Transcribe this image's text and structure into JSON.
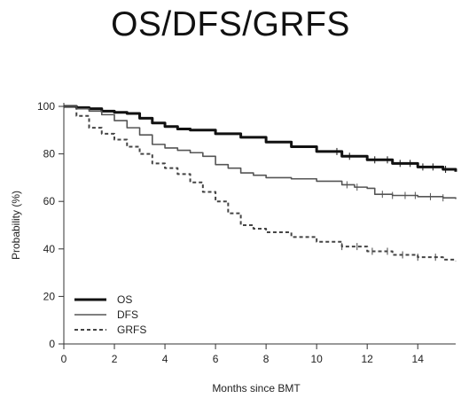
{
  "title": "OS/DFS/GRFS",
  "chart_data": {
    "type": "line",
    "title": "OS/DFS/GRFS",
    "xlabel": "Months since BMT",
    "ylabel": "Probability (%)",
    "xlim": [
      0,
      15.5
    ],
    "ylim": [
      0,
      100
    ],
    "x_ticks": [
      0,
      2,
      4,
      6,
      8,
      10,
      12,
      14
    ],
    "y_ticks": [
      0,
      20,
      40,
      60,
      80,
      100
    ],
    "grid": false,
    "legend_position": "bottom-left",
    "series": [
      {
        "name": "OS",
        "color": "#111111",
        "dash": "solid",
        "width": 3,
        "points": [
          [
            0,
            100
          ],
          [
            0.5,
            99.5
          ],
          [
            1,
            99
          ],
          [
            1.5,
            98
          ],
          [
            2,
            97.5
          ],
          [
            2.5,
            97
          ],
          [
            3,
            95
          ],
          [
            3.5,
            93
          ],
          [
            4,
            91.5
          ],
          [
            4.5,
            90.5
          ],
          [
            5,
            90
          ],
          [
            6,
            88.5
          ],
          [
            7,
            87
          ],
          [
            8,
            85
          ],
          [
            9,
            83
          ],
          [
            10,
            81
          ],
          [
            11,
            79
          ],
          [
            12,
            77.5
          ],
          [
            13,
            76
          ],
          [
            14,
            74.5
          ],
          [
            15,
            73.5
          ],
          [
            15.5,
            72.5
          ]
        ],
        "censor_x": [
          10.8,
          11.3,
          12.3,
          12.8,
          13.3,
          13.7,
          14.2,
          14.6,
          15.1
        ]
      },
      {
        "name": "DFS",
        "color": "#555555",
        "dash": "solid",
        "width": 1.6,
        "points": [
          [
            0,
            100
          ],
          [
            0.5,
            99
          ],
          [
            1,
            98
          ],
          [
            1.5,
            96.5
          ],
          [
            2,
            94
          ],
          [
            2.5,
            91
          ],
          [
            3,
            88
          ],
          [
            3.5,
            84
          ],
          [
            4,
            82.5
          ],
          [
            4.5,
            81.5
          ],
          [
            5,
            80.5
          ],
          [
            5.5,
            79
          ],
          [
            6,
            75.5
          ],
          [
            6.5,
            74
          ],
          [
            7,
            72
          ],
          [
            7.5,
            71
          ],
          [
            8,
            70
          ],
          [
            9,
            69.5
          ],
          [
            10,
            68.5
          ],
          [
            11,
            67
          ],
          [
            11.5,
            66
          ],
          [
            12,
            65.5
          ],
          [
            12.3,
            63
          ],
          [
            13,
            62.5
          ],
          [
            14,
            62
          ],
          [
            15,
            61.5
          ],
          [
            15.5,
            61
          ]
        ],
        "censor_x": [
          11.2,
          11.6,
          12.6,
          13.0,
          13.5,
          13.9,
          14.5,
          15.0
        ]
      },
      {
        "name": "GRFS",
        "color": "#444444",
        "dash": "dashed",
        "width": 2,
        "points": [
          [
            0,
            100
          ],
          [
            0.5,
            96
          ],
          [
            1,
            91
          ],
          [
            1.5,
            88.5
          ],
          [
            2,
            86
          ],
          [
            2.5,
            83
          ],
          [
            3,
            80
          ],
          [
            3.5,
            76
          ],
          [
            4,
            74
          ],
          [
            4.5,
            71.5
          ],
          [
            5,
            68
          ],
          [
            5.5,
            64
          ],
          [
            6,
            60
          ],
          [
            6.5,
            55
          ],
          [
            7,
            50
          ],
          [
            7.5,
            48.5
          ],
          [
            8,
            47
          ],
          [
            9,
            45
          ],
          [
            10,
            43
          ],
          [
            11,
            41
          ],
          [
            12,
            39
          ],
          [
            13,
            37.5
          ],
          [
            14,
            36.5
          ],
          [
            15,
            35.5
          ],
          [
            15.5,
            35
          ]
        ],
        "censor_x": [
          11.0,
          11.6,
          12.2,
          12.8,
          13.4,
          14.0,
          14.7
        ]
      }
    ]
  }
}
